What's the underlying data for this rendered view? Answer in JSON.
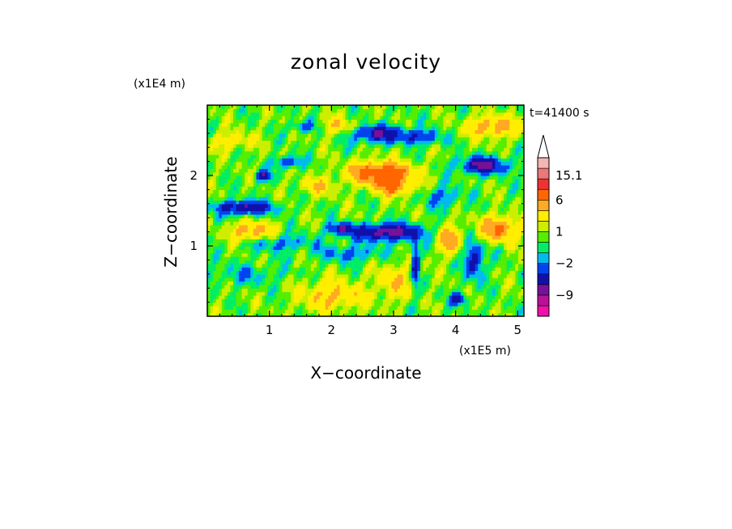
{
  "chart_data": {
    "type": "heatmap",
    "title": "zonal velocity",
    "xlabel": "X−coordinate",
    "ylabel": "Z−coordinate",
    "x_scale_note": "(x1E5 m)",
    "y_scale_note": "(x1E4 m)",
    "time_label": "t=41400 s",
    "xlim": [
      0,
      5.1
    ],
    "ylim": [
      0,
      3.0
    ],
    "x_ticks": [
      1,
      2,
      3,
      4,
      5
    ],
    "y_ticks": [
      1,
      2
    ],
    "grid": false,
    "legend": "right",
    "colorbar": {
      "levels": [
        -15,
        -12,
        -9,
        -6,
        -4,
        -2,
        -1,
        0,
        1,
        2,
        4,
        6,
        9,
        12,
        15.1
      ],
      "labels": [
        "15.1",
        "6",
        "1",
        "−2",
        "−9"
      ],
      "label_values": [
        15.1,
        6,
        1,
        -2,
        -9
      ],
      "colors": [
        "#ee11aa",
        "#bb1199",
        "#771199",
        "#1111aa",
        "#0044ee",
        "#00bbee",
        "#00ee66",
        "#55ee00",
        "#ccee00",
        "#ffee00",
        "#ffaa22",
        "#ff6600",
        "#ee3333",
        "#ee7777",
        "#f5b5b5"
      ],
      "extend_top_color": "#ffffff"
    },
    "field_features": [
      {
        "x": 0.6,
        "z": 1.55,
        "value": -7,
        "sx": 0.45,
        "sz": 0.1
      },
      {
        "x": 0.9,
        "z": 2.0,
        "value": -6,
        "sx": 0.12,
        "sz": 0.08
      },
      {
        "x": 1.3,
        "z": 2.2,
        "value": -5,
        "sx": 0.2,
        "sz": 0.08
      },
      {
        "x": 1.55,
        "z": 2.7,
        "value": -4,
        "sx": 0.2,
        "sz": 0.08
      },
      {
        "x": 2.9,
        "z": 1.2,
        "value": -8,
        "sx": 0.55,
        "sz": 0.12
      },
      {
        "x": 2.15,
        "z": 1.25,
        "value": -6,
        "sx": 0.2,
        "sz": 0.08
      },
      {
        "x": 2.75,
        "z": 2.6,
        "value": -6,
        "sx": 0.45,
        "sz": 0.12
      },
      {
        "x": 3.45,
        "z": 2.55,
        "value": -4,
        "sx": 0.35,
        "sz": 0.1
      },
      {
        "x": 4.45,
        "z": 2.15,
        "value": -7,
        "sx": 0.4,
        "sz": 0.12
      },
      {
        "x": 4.3,
        "z": 0.8,
        "value": -6,
        "sx": 0.15,
        "sz": 0.25
      },
      {
        "x": 4.05,
        "z": 0.25,
        "value": -6,
        "sx": 0.12,
        "sz": 0.08
      },
      {
        "x": 3.35,
        "z": 0.75,
        "value": -6,
        "sx": 0.06,
        "sz": 0.35
      },
      {
        "x": 1.1,
        "z": 1.05,
        "value": -3,
        "sx": 0.6,
        "sz": 0.12
      },
      {
        "x": 2.3,
        "z": 0.9,
        "value": -3,
        "sx": 0.5,
        "sz": 0.12
      },
      {
        "x": 0.6,
        "z": 0.6,
        "value": -2,
        "sx": 0.6,
        "sz": 0.15
      },
      {
        "x": 3.8,
        "z": 1.7,
        "value": -3,
        "sx": 0.3,
        "sz": 0.15
      },
      {
        "x": 2.8,
        "z": 2.05,
        "value": 8,
        "sx": 0.5,
        "sz": 0.15
      },
      {
        "x": 3.0,
        "z": 1.85,
        "value": 6,
        "sx": 0.3,
        "sz": 0.12
      },
      {
        "x": 0.7,
        "z": 1.2,
        "value": 5,
        "sx": 0.35,
        "sz": 0.15
      },
      {
        "x": 4.7,
        "z": 1.25,
        "value": 6,
        "sx": 0.3,
        "sz": 0.18
      },
      {
        "x": 4.6,
        "z": 2.7,
        "value": 5,
        "sx": 0.4,
        "sz": 0.15
      },
      {
        "x": 1.8,
        "z": 1.85,
        "value": 3,
        "sx": 0.3,
        "sz": 0.12
      },
      {
        "x": 2.1,
        "z": 2.7,
        "value": 3,
        "sx": 0.3,
        "sz": 0.12
      },
      {
        "x": 0.4,
        "z": 2.5,
        "value": 3,
        "sx": 0.3,
        "sz": 0.12
      },
      {
        "x": 2.0,
        "z": 0.3,
        "value": 4,
        "sx": 0.5,
        "sz": 0.2
      },
      {
        "x": 3.9,
        "z": 1.1,
        "value": 5,
        "sx": 0.2,
        "sz": 0.2
      },
      {
        "x": 3.0,
        "z": 0.5,
        "value": 3,
        "sx": 0.3,
        "sz": 0.25
      }
    ]
  }
}
